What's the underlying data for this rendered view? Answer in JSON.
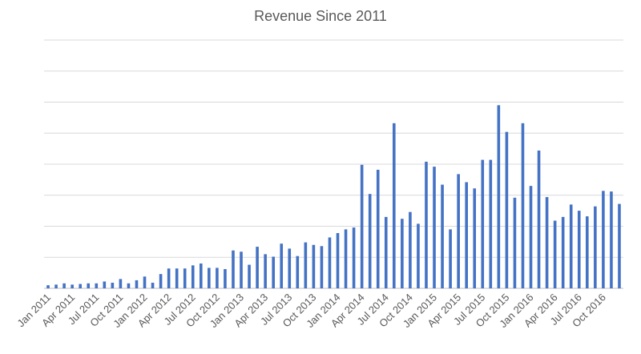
{
  "chart_data": {
    "type": "bar",
    "title": "Revenue Since 2011",
    "xlabel": "",
    "ylabel": "",
    "grid": true,
    "y_axis_labels_visible": false,
    "ylim": [
      0,
      20
    ],
    "color": "#4472C4",
    "categories": [
      "Jan 2011",
      "Feb 2011",
      "Mar 2011",
      "Apr 2011",
      "May 2011",
      "Jun 2011",
      "Jul 2011",
      "Aug 2011",
      "Sep 2011",
      "Oct 2011",
      "Nov 2011",
      "Dec 2011",
      "Jan 2012",
      "Feb 2012",
      "Mar 2012",
      "Apr 2012",
      "May 2012",
      "Jun 2012",
      "Jul 2012",
      "Aug 2012",
      "Sep 2012",
      "Oct 2012",
      "Nov 2012",
      "Dec 2012",
      "Jan 2013",
      "Feb 2013",
      "Mar 2013",
      "Apr 2013",
      "May 2013",
      "Jun 2013",
      "Jul 2013",
      "Aug 2013",
      "Sep 2013",
      "Oct 2013",
      "Nov 2013",
      "Dec 2013",
      "Jan 2014",
      "Feb 2014",
      "Mar 2014",
      "Apr 2014",
      "May 2014",
      "Jun 2014",
      "Jul 2014",
      "Aug 2014",
      "Sep 2014",
      "Oct 2014",
      "Nov 2014",
      "Dec 2014",
      "Jan 2015",
      "Feb 2015",
      "Mar 2015",
      "Apr 2015",
      "May 2015",
      "Jun 2015",
      "Jul 2015",
      "Aug 2015",
      "Sep 2015",
      "Oct 2015",
      "Nov 2015",
      "Dec 2015",
      "Jan 2016",
      "Feb 2016",
      "Mar 2016",
      "Apr 2016",
      "May 2016",
      "Jun 2016",
      "Jul 2016",
      "Aug 2016",
      "Sep 2016",
      "Oct 2016",
      "Nov 2016",
      "Dec 2016"
    ],
    "tick_labels": [
      "Jan 2011",
      "Apr 2011",
      "Jul 2011",
      "Oct 2011",
      "Jan 2012",
      "Apr 2012",
      "Jul 2012",
      "Oct 2012",
      "Jan 2013",
      "Apr 2013",
      "Jul 2013",
      "Oct 2013",
      "Jan 2014",
      "Apr 2014",
      "Jul 2014",
      "Oct 2014",
      "Jan 2015",
      "Apr 2015",
      "Jul 2015",
      "Oct 2015",
      "Jan 2016",
      "Apr 2016",
      "Jul 2016",
      "Oct 2016"
    ],
    "values": [
      0.25,
      0.3,
      0.4,
      0.3,
      0.35,
      0.4,
      0.4,
      0.55,
      0.45,
      0.75,
      0.4,
      0.65,
      0.95,
      0.45,
      1.15,
      1.6,
      1.6,
      1.6,
      1.85,
      2.0,
      1.65,
      1.65,
      1.55,
      3.05,
      2.95,
      1.9,
      3.35,
      2.75,
      2.55,
      3.6,
      3.2,
      2.6,
      3.7,
      3.5,
      3.4,
      4.1,
      4.45,
      4.75,
      4.9,
      9.95,
      7.6,
      9.55,
      5.75,
      13.3,
      5.6,
      6.15,
      5.2,
      10.2,
      9.8,
      8.35,
      4.75,
      9.2,
      8.55,
      8.05,
      10.35,
      10.35,
      14.75,
      12.6,
      7.3,
      13.3,
      8.25,
      11.1,
      7.35,
      5.45,
      5.75,
      6.75,
      6.25,
      5.8,
      6.6,
      7.85,
      7.8,
      6.8
    ]
  }
}
